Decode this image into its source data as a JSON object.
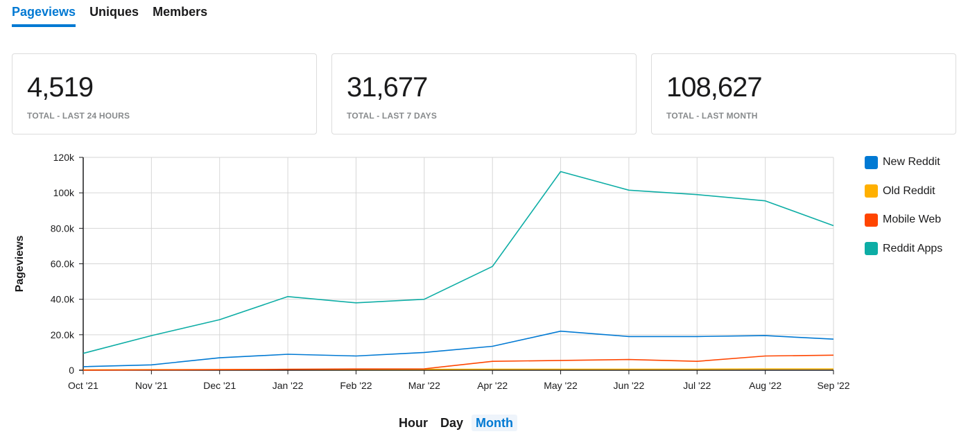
{
  "tabs": [
    {
      "label": "Pageviews",
      "active": true
    },
    {
      "label": "Uniques",
      "active": false
    },
    {
      "label": "Members",
      "active": false
    }
  ],
  "cards": [
    {
      "value": "4,519",
      "label": "TOTAL - LAST 24 HOURS"
    },
    {
      "value": "31,677",
      "label": "TOTAL - LAST 7 DAYS"
    },
    {
      "value": "108,627",
      "label": "TOTAL - LAST MONTH"
    }
  ],
  "chart_data": {
    "type": "line",
    "categories": [
      "Oct '21",
      "Nov '21",
      "Dec '21",
      "Jan '22",
      "Feb '22",
      "Mar '22",
      "Apr '22",
      "May '22",
      "Jun '22",
      "Jul '22",
      "Aug '22",
      "Sep '22"
    ],
    "series": [
      {
        "name": "New Reddit",
        "color": "#0079d3",
        "values": [
          2000,
          3000,
          7000,
          9000,
          8000,
          10000,
          13500,
          22000,
          19000,
          19000,
          19500,
          17500
        ]
      },
      {
        "name": "Old Reddit",
        "color": "#ffb000",
        "values": [
          200,
          300,
          400,
          500,
          500,
          500,
          600,
          600,
          600,
          600,
          700,
          700
        ]
      },
      {
        "name": "Mobile Web",
        "color": "#ff4500",
        "values": [
          0,
          200,
          300,
          500,
          700,
          800,
          5000,
          5500,
          6000,
          5000,
          8000,
          8500
        ]
      },
      {
        "name": "Reddit Apps",
        "color": "#0dada5",
        "values": [
          9500,
          19500,
          28500,
          41500,
          38000,
          40000,
          58500,
          112000,
          101500,
          99000,
          95500,
          81500
        ]
      }
    ],
    "yticks": [
      "0",
      "20.0k",
      "40.0k",
      "60.0k",
      "80.0k",
      "100k",
      "120k"
    ],
    "ylim": [
      0,
      120000
    ],
    "ylabel": "Pageviews",
    "grid": true,
    "legend": "right"
  },
  "granularity": [
    {
      "label": "Hour",
      "active": false
    },
    {
      "label": "Day",
      "active": false
    },
    {
      "label": "Month",
      "active": true
    }
  ]
}
